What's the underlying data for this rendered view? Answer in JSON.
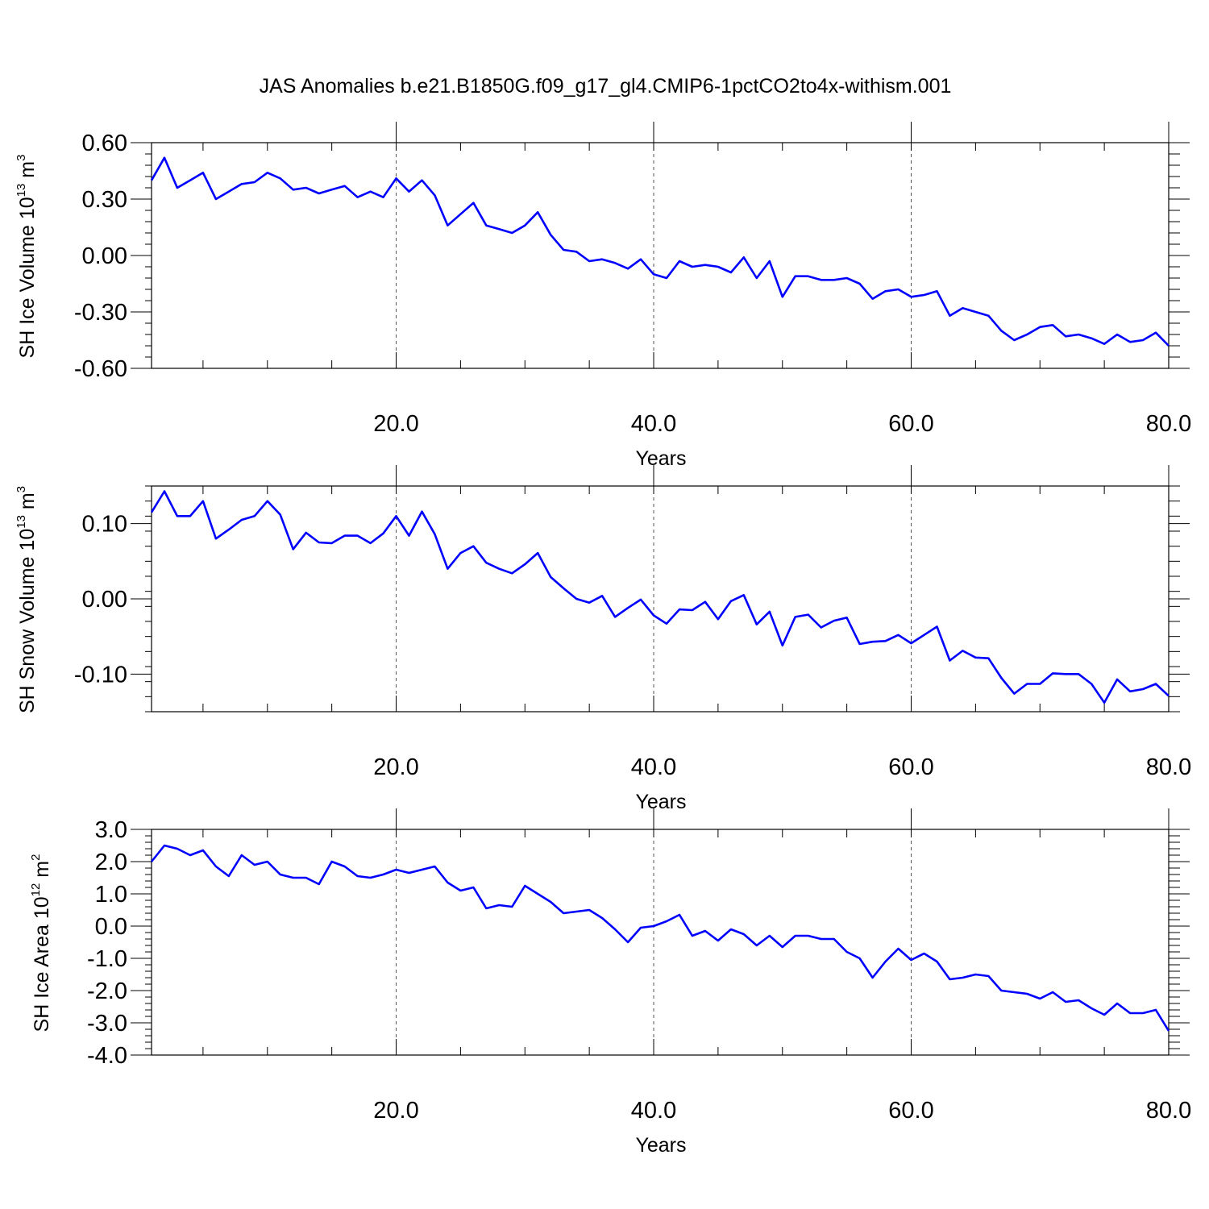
{
  "title": "JAS Anomalies b.e21.B1850G.f09_g17_gl4.CMIP6-1pctCO2to4x-withism.001",
  "colors": {
    "line": "#0000ff",
    "axes": "#000000",
    "grid": "#555555"
  },
  "chart_data": [
    {
      "type": "line",
      "xlabel": "Years",
      "ylabel": "SH Ice Volume 10",
      "ylabel_exponent": "13",
      "ylabel_unit": " m",
      "ylabel_unit_exponent": "3",
      "xlim": [
        1,
        80
      ],
      "ylim": [
        -0.6,
        0.6
      ],
      "xticks": [
        20,
        40,
        60,
        80
      ],
      "xtick_labels": [
        "20.0",
        "40.0",
        "60.0",
        "80.0"
      ],
      "yticks": [
        -0.6,
        -0.3,
        0,
        0.3,
        0.6
      ],
      "ytick_labels": [
        "-0.60",
        "-0.30",
        "0.00",
        "0.30",
        "0.60"
      ],
      "y_minor_step": 0.06,
      "x_minor_step": 5,
      "grid_x": [
        20,
        40,
        60
      ],
      "x": [
        1,
        2,
        3,
        4,
        5,
        6,
        7,
        8,
        9,
        10,
        11,
        12,
        13,
        14,
        15,
        16,
        17,
        18,
        19,
        20,
        21,
        22,
        23,
        24,
        25,
        26,
        27,
        28,
        29,
        30,
        31,
        32,
        33,
        34,
        35,
        36,
        37,
        38,
        39,
        40,
        41,
        42,
        43,
        44,
        45,
        46,
        47,
        48,
        49,
        50,
        51,
        52,
        53,
        54,
        55,
        56,
        57,
        58,
        59,
        60,
        61,
        62,
        63,
        64,
        65,
        66,
        67,
        68,
        69,
        70,
        71,
        72,
        73,
        74,
        75,
        76,
        77,
        78,
        79,
        80
      ],
      "values": [
        0.4,
        0.52,
        0.36,
        0.4,
        0.44,
        0.3,
        0.34,
        0.38,
        0.39,
        0.44,
        0.41,
        0.35,
        0.36,
        0.33,
        0.35,
        0.37,
        0.31,
        0.34,
        0.31,
        0.41,
        0.34,
        0.4,
        0.32,
        0.16,
        0.22,
        0.28,
        0.16,
        0.14,
        0.12,
        0.16,
        0.23,
        0.11,
        0.03,
        0.02,
        -0.03,
        -0.02,
        -0.04,
        -0.07,
        -0.02,
        -0.1,
        -0.12,
        -0.03,
        -0.06,
        -0.05,
        -0.06,
        -0.09,
        -0.01,
        -0.12,
        -0.03,
        -0.22,
        -0.11,
        -0.11,
        -0.13,
        -0.13,
        -0.12,
        -0.15,
        -0.23,
        -0.19,
        -0.18,
        -0.22,
        -0.21,
        -0.19,
        -0.32,
        -0.28,
        -0.3,
        -0.32,
        -0.4,
        -0.45,
        -0.42,
        -0.38,
        -0.37,
        -0.43,
        -0.42,
        -0.44,
        -0.47,
        -0.42,
        -0.46,
        -0.45,
        -0.41,
        -0.48
      ]
    },
    {
      "type": "line",
      "xlabel": "Years",
      "ylabel": "SH Snow Volume 10",
      "ylabel_exponent": "13",
      "ylabel_unit": " m",
      "ylabel_unit_exponent": "3",
      "xlim": [
        1,
        80
      ],
      "ylim": [
        -0.15,
        0.15
      ],
      "xticks": [
        20,
        40,
        60,
        80
      ],
      "xtick_labels": [
        "20.0",
        "40.0",
        "60.0",
        "80.0"
      ],
      "yticks": [
        -0.1,
        0,
        0.1
      ],
      "ytick_labels": [
        "-0.10",
        "0.00",
        "0.10"
      ],
      "y_minor_step": 0.02,
      "x_minor_step": 5,
      "grid_x": [
        20,
        40,
        60
      ],
      "x": [
        1,
        2,
        3,
        4,
        5,
        6,
        7,
        8,
        9,
        10,
        11,
        12,
        13,
        14,
        15,
        16,
        17,
        18,
        19,
        20,
        21,
        22,
        23,
        24,
        25,
        26,
        27,
        28,
        29,
        30,
        31,
        32,
        33,
        34,
        35,
        36,
        37,
        38,
        39,
        40,
        41,
        42,
        43,
        44,
        45,
        46,
        47,
        48,
        49,
        50,
        51,
        52,
        53,
        54,
        55,
        56,
        57,
        58,
        59,
        60,
        61,
        62,
        63,
        64,
        65,
        66,
        67,
        68,
        69,
        70,
        71,
        72,
        73,
        74,
        75,
        76,
        77,
        78,
        79,
        80
      ],
      "values": [
        0.115,
        0.143,
        0.11,
        0.11,
        0.13,
        0.08,
        0.092,
        0.105,
        0.11,
        0.13,
        0.112,
        0.066,
        0.088,
        0.075,
        0.074,
        0.084,
        0.084,
        0.074,
        0.087,
        0.11,
        0.084,
        0.116,
        0.086,
        0.04,
        0.061,
        0.07,
        0.048,
        0.04,
        0.034,
        0.046,
        0.061,
        0.029,
        0.014,
        0.0,
        -0.005,
        0.004,
        -0.024,
        -0.012,
        -0.001,
        -0.022,
        -0.033,
        -0.014,
        -0.015,
        -0.004,
        -0.027,
        -0.003,
        0.005,
        -0.034,
        -0.017,
        -0.062,
        -0.024,
        -0.021,
        -0.038,
        -0.029,
        -0.025,
        -0.06,
        -0.057,
        -0.056,
        -0.048,
        -0.059,
        -0.048,
        -0.037,
        -0.082,
        -0.069,
        -0.078,
        -0.079,
        -0.105,
        -0.126,
        -0.113,
        -0.113,
        -0.099,
        -0.1,
        -0.1,
        -0.113,
        -0.138,
        -0.107,
        -0.123,
        -0.12,
        -0.113,
        -0.129
      ]
    },
    {
      "type": "line",
      "xlabel": "Years",
      "ylabel": "SH Ice Area 10",
      "ylabel_exponent": "12",
      "ylabel_unit": " m",
      "ylabel_unit_exponent": "2",
      "xlim": [
        1,
        80
      ],
      "ylim": [
        -4.0,
        3.0
      ],
      "xticks": [
        20,
        40,
        60,
        80
      ],
      "xtick_labels": [
        "20.0",
        "40.0",
        "60.0",
        "80.0"
      ],
      "yticks": [
        -4,
        -3,
        -2,
        -1,
        0,
        1,
        2,
        3
      ],
      "ytick_labels": [
        "-4.0",
        "-3.0",
        "-2.0",
        "-1.0",
        "0.0",
        "1.0",
        "2.0",
        "3.0"
      ],
      "y_minor_step": 0.2,
      "x_minor_step": 5,
      "grid_x": [
        20,
        40,
        60
      ],
      "x": [
        1,
        2,
        3,
        4,
        5,
        6,
        7,
        8,
        9,
        10,
        11,
        12,
        13,
        14,
        15,
        16,
        17,
        18,
        19,
        20,
        21,
        22,
        23,
        24,
        25,
        26,
        27,
        28,
        29,
        30,
        31,
        32,
        33,
        34,
        35,
        36,
        37,
        38,
        39,
        40,
        41,
        42,
        43,
        44,
        45,
        46,
        47,
        48,
        49,
        50,
        51,
        52,
        53,
        54,
        55,
        56,
        57,
        58,
        59,
        60,
        61,
        62,
        63,
        64,
        65,
        66,
        67,
        68,
        69,
        70,
        71,
        72,
        73,
        74,
        75,
        76,
        77,
        78,
        79,
        80
      ],
      "values": [
        2.0,
        2.5,
        2.4,
        2.2,
        2.35,
        1.85,
        1.55,
        2.2,
        1.9,
        2.0,
        1.6,
        1.5,
        1.5,
        1.3,
        2.0,
        1.85,
        1.55,
        1.5,
        1.6,
        1.75,
        1.65,
        1.75,
        1.85,
        1.35,
        1.1,
        1.2,
        0.55,
        0.65,
        0.6,
        1.25,
        1.0,
        0.75,
        0.4,
        0.45,
        0.5,
        0.25,
        -0.1,
        -0.5,
        -0.05,
        0.0,
        0.15,
        0.35,
        -0.3,
        -0.15,
        -0.45,
        -0.1,
        -0.25,
        -0.6,
        -0.3,
        -0.65,
        -0.3,
        -0.3,
        -0.4,
        -0.4,
        -0.8,
        -1.0,
        -1.6,
        -1.1,
        -0.7,
        -1.05,
        -0.85,
        -1.1,
        -1.65,
        -1.6,
        -1.5,
        -1.55,
        -2.0,
        -2.05,
        -2.1,
        -2.25,
        -2.05,
        -2.35,
        -2.3,
        -2.55,
        -2.75,
        -2.4,
        -2.7,
        -2.7,
        -2.6,
        -3.25
      ]
    }
  ]
}
